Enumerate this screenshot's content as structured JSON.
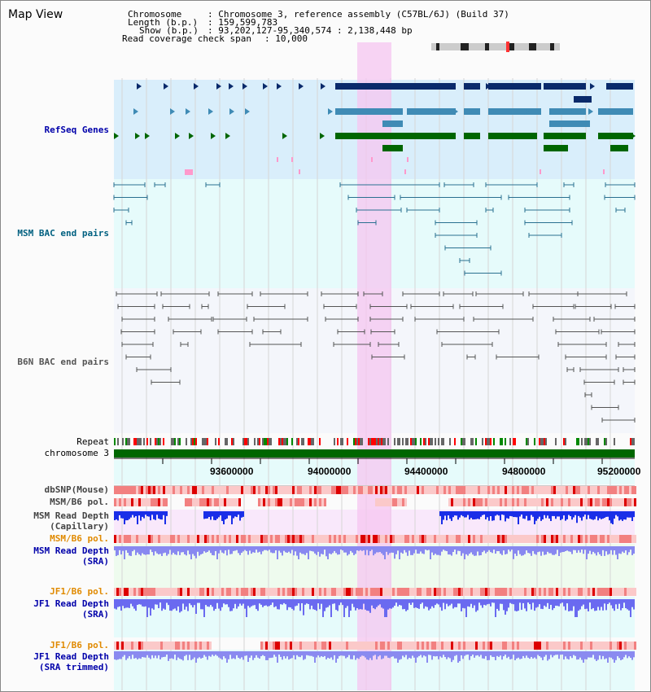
{
  "title": "Map View",
  "header": {
    "chromosome_key": "Chromosome",
    "chromosome_val": ": Chromosome 3, reference assembly (C57BL/6J) (Build 37)",
    "length_key": "Length (b.p.)",
    "length_val": ": 159,599,783",
    "show_key": "Show (b.p.)",
    "show_val": ": 93,202,127-95,340,574 : 2,138,448 bp",
    "coverage_key": "Read coverage check span",
    "coverage_val": ": 10,000"
  },
  "tracks": {
    "refseq": "RefSeq Genes",
    "msm_bac": "MSM BAC end pairs",
    "b6n_bac": "B6N BAC end pairs",
    "repeat": "Repeat",
    "chromosome": "chromosome 3",
    "dbsnp": "dbSNP(Mouse)",
    "msm_b6_pol1": "MSM/B6 pol.",
    "msm_depth_cap_1": "MSM Read Depth",
    "msm_depth_cap_2": "(Capillary)",
    "msm_b6_pol2": "MSM/B6 pol.",
    "msm_depth_sra_1": "MSM Read Depth",
    "msm_depth_sra_2": "(SRA)",
    "jf1_b6_pol1": "JF1/B6 pol.",
    "jf1_depth_sra_1": "JF1 Read Depth",
    "jf1_depth_sra_2": "(SRA)",
    "jf1_b6_pol2": "JF1/B6 pol.",
    "jf1_depth_trim_1": "JF1 Read Depth",
    "jf1_depth_trim_2": "(SRA trimmed)"
  },
  "axis": {
    "ticks": [
      "93600000",
      "94000000",
      "94400000",
      "94800000",
      "95200000"
    ]
  },
  "colors": {
    "refseq_label": "#0000aa",
    "msm_bac_label": "#006080",
    "b6n_bac_label": "#555555",
    "pol_label": "#e08a00",
    "depth_label": "#0000aa",
    "highlight": "#f5c6f0",
    "chromosome_bar": "#006600",
    "gene_dark": "#0a2a6b",
    "gene_mid": "#3f8bb5",
    "gene_green": "#006600"
  }
}
